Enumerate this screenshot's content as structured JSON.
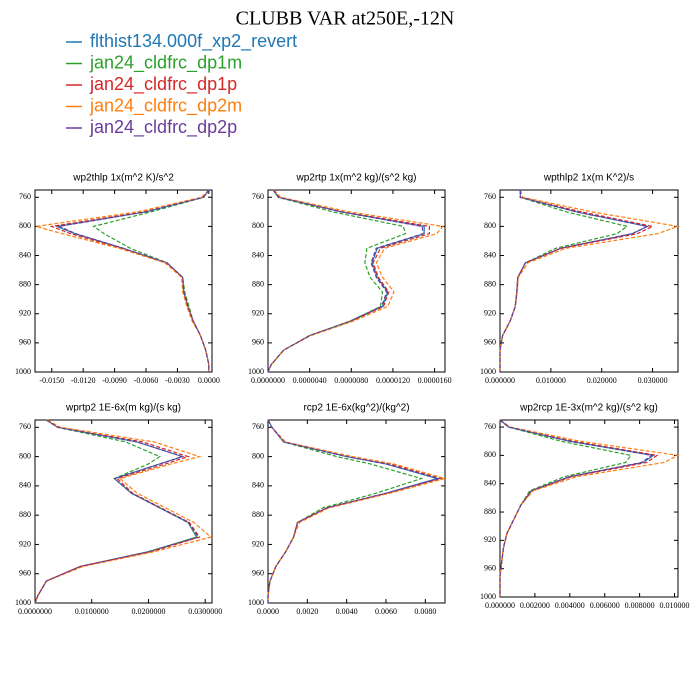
{
  "title": "CLUBB VAR at250E,-12N",
  "legend": [
    {
      "name": "flthist134.000f_xp2_revert",
      "color": "#1f77b4"
    },
    {
      "name": "jan24_cldfrc_dp1m",
      "color": "#2ca02c"
    },
    {
      "name": "jan24_cldfrc_dp1p",
      "color": "#d62728"
    },
    {
      "name": "jan24_cldfrc_dp2m",
      "color": "#ff7f0e"
    },
    {
      "name": "jan24_cldfrc_dp2p",
      "color": "#6a3d9a"
    }
  ],
  "chart_data": [
    {
      "type": "line",
      "title": "wp2thlp   1x(m^2 K)/s^2",
      "levels": [
        750,
        760,
        780,
        800,
        810,
        830,
        850,
        870,
        890,
        910,
        930,
        950,
        970,
        990,
        1000
      ],
      "xlim": [
        -0.0166,
        0.0003
      ],
      "xticks": [
        {
          "value": -0.015,
          "label": "-0.0150"
        },
        {
          "value": -0.012,
          "label": "-0.0120"
        },
        {
          "value": -0.009,
          "label": "-0.0090"
        },
        {
          "value": -0.006,
          "label": "-0.0060"
        },
        {
          "value": -0.003,
          "label": "-0.0030"
        },
        {
          "value": 0,
          "label": "0.0000"
        }
      ],
      "ylim": [
        750,
        1000
      ],
      "y_inverted": true,
      "yticks": [
        760,
        800,
        840,
        880,
        920,
        960,
        1000
      ],
      "series": [
        {
          "values": [
            0,
            -0.0005,
            -0.006,
            -0.0145,
            -0.0128,
            -0.0082,
            -0.004,
            -0.0025,
            -0.0024,
            -0.002,
            -0.0015,
            -0.0008,
            -0.0003,
            0,
            0
          ]
        },
        {
          "values": [
            0,
            -0.0005,
            -0.0055,
            -0.011,
            -0.01,
            -0.0075,
            -0.004,
            -0.0025,
            -0.0023,
            -0.0019,
            -0.0015,
            -0.0008,
            -0.0003,
            0,
            0
          ]
        },
        {
          "values": [
            0,
            -0.0006,
            -0.0062,
            -0.015,
            -0.0132,
            -0.0084,
            -0.0041,
            -0.0025,
            -0.0024,
            -0.002,
            -0.0015,
            -0.0008,
            -0.0003,
            0,
            0
          ]
        },
        {
          "values": [
            0,
            -0.0007,
            -0.0068,
            -0.0165,
            -0.014,
            -0.0086,
            -0.0042,
            -0.0026,
            -0.0025,
            -0.0021,
            -0.0016,
            -0.0008,
            -0.0003,
            0,
            0
          ]
        },
        {
          "values": [
            0,
            -0.0005,
            -0.006,
            -0.0143,
            -0.0127,
            -0.0082,
            -0.004,
            -0.0025,
            -0.0024,
            -0.002,
            -0.0015,
            -0.0008,
            -0.0003,
            0,
            0
          ]
        }
      ]
    },
    {
      "type": "line",
      "title": "wp2rtp   1x(m^2 kg)/(s^2 kg)",
      "levels": [
        750,
        760,
        780,
        800,
        810,
        830,
        850,
        870,
        890,
        910,
        930,
        950,
        970,
        990,
        1000
      ],
      "xlim": [
        0,
        1.7e-05
      ],
      "xticks": [
        {
          "value": 0,
          "label": "0.0000000"
        },
        {
          "value": 4e-06,
          "label": "0.0000040"
        },
        {
          "value": 8e-06,
          "label": "0.0000080"
        },
        {
          "value": 1.2e-05,
          "label": "0.0000120"
        },
        {
          "value": 1.6e-05,
          "label": "0.0000160"
        }
      ],
      "ylim": [
        750,
        1000
      ],
      "y_inverted": true,
      "yticks": [
        760,
        800,
        840,
        880,
        920,
        960,
        1000
      ],
      "series": [
        {
          "values": [
            5e-07,
            1e-06,
            7e-06,
            1.5e-05,
            1.5e-05,
            1.05e-05,
            1e-05,
            1.05e-05,
            1.15e-05,
            1.1e-05,
            8e-06,
            4e-06,
            1.5e-06,
            3e-07,
            0
          ]
        },
        {
          "values": [
            5e-07,
            1e-06,
            6.2e-06,
            1.3e-05,
            1.32e-05,
            9.5e-06,
            9.3e-06,
            9.8e-06,
            1.1e-05,
            1.08e-05,
            7.9e-06,
            4e-06,
            1.5e-06,
            3e-07,
            0
          ]
        },
        {
          "values": [
            5e-07,
            1.1e-06,
            7.2e-06,
            1.55e-05,
            1.55e-05,
            1.08e-05,
            1.01e-05,
            1.06e-05,
            1.16e-05,
            1.11e-05,
            8e-06,
            4e-06,
            1.5e-06,
            3e-07,
            0
          ]
        },
        {
          "values": [
            6e-07,
            1.2e-06,
            7.8e-06,
            1.68e-05,
            1.62e-05,
            1.12e-05,
            1.04e-05,
            1.1e-05,
            1.21e-05,
            1.15e-05,
            8.2e-06,
            4.1e-06,
            1.5e-06,
            3e-07,
            0
          ]
        },
        {
          "values": [
            5e-07,
            1e-06,
            7e-06,
            1.48e-05,
            1.49e-05,
            1.04e-05,
            9.9e-06,
            1.04e-05,
            1.14e-05,
            1.09e-05,
            7.9e-06,
            4e-06,
            1.5e-06,
            3e-07,
            0
          ]
        }
      ]
    },
    {
      "type": "line",
      "title": "wpthlp2   1x(m K^2)/s",
      "levels": [
        750,
        760,
        780,
        800,
        810,
        830,
        850,
        870,
        890,
        910,
        930,
        950,
        970,
        990,
        1000
      ],
      "xlim": [
        0,
        0.035
      ],
      "xticks": [
        {
          "value": 0,
          "label": "0.000000"
        },
        {
          "value": 0.01,
          "label": "0.010000"
        },
        {
          "value": 0.02,
          "label": "0.020000"
        },
        {
          "value": 0.03,
          "label": "0.030000"
        }
      ],
      "ylim": [
        750,
        1000
      ],
      "y_inverted": true,
      "yticks": [
        760,
        800,
        840,
        880,
        920,
        960,
        1000
      ],
      "series": [
        {
          "values": [
            0.004,
            0.004,
            0.015,
            0.029,
            0.026,
            0.012,
            0.005,
            0.0035,
            0.0033,
            0.003,
            0.002,
            0.0005,
            0,
            0,
            0
          ]
        },
        {
          "values": [
            0.004,
            0.004,
            0.013,
            0.025,
            0.023,
            0.011,
            0.005,
            0.0035,
            0.0033,
            0.003,
            0.002,
            0.0005,
            0,
            0,
            0
          ]
        },
        {
          "values": [
            0.004,
            0.004,
            0.016,
            0.03,
            0.027,
            0.012,
            0.005,
            0.0035,
            0.0033,
            0.003,
            0.002,
            0.0005,
            0,
            0,
            0
          ]
        },
        {
          "values": [
            0.004,
            0.0045,
            0.018,
            0.035,
            0.031,
            0.013,
            0.0055,
            0.0036,
            0.0034,
            0.003,
            0.002,
            0.0005,
            0,
            0,
            0
          ]
        },
        {
          "values": [
            0.004,
            0.004,
            0.015,
            0.029,
            0.026,
            0.012,
            0.005,
            0.0035,
            0.0033,
            0.003,
            0.002,
            0.0005,
            0,
            0,
            0
          ]
        }
      ]
    },
    {
      "type": "line",
      "title": "wprtp2   1E-6x(m kg)/(s kg)",
      "levels": [
        750,
        760,
        780,
        800,
        810,
        830,
        850,
        870,
        890,
        910,
        930,
        950,
        970,
        990,
        1000
      ],
      "xlim": [
        0,
        0.0312
      ],
      "xticks": [
        {
          "value": 0,
          "label": "0.0000000"
        },
        {
          "value": 0.01,
          "label": "0.0100000"
        },
        {
          "value": 0.02,
          "label": "0.0200000"
        },
        {
          "value": 0.03,
          "label": "0.0300000"
        }
      ],
      "ylim": [
        750,
        1000
      ],
      "y_inverted": true,
      "yticks": [
        760,
        800,
        840,
        880,
        920,
        960,
        1000
      ],
      "series": [
        {
          "values": [
            0.002,
            0.004,
            0.018,
            0.026,
            0.022,
            0.014,
            0.017,
            0.022,
            0.027,
            0.0285,
            0.02,
            0.008,
            0.002,
            0.0005,
            0
          ]
        },
        {
          "values": [
            0.002,
            0.004,
            0.016,
            0.022,
            0.02,
            0.014,
            0.017,
            0.022,
            0.027,
            0.0285,
            0.02,
            0.008,
            0.002,
            0.0005,
            0
          ]
        },
        {
          "values": [
            0.002,
            0.004,
            0.019,
            0.027,
            0.023,
            0.0145,
            0.0172,
            0.0222,
            0.0272,
            0.029,
            0.0205,
            0.008,
            0.002,
            0.0005,
            0
          ]
        },
        {
          "values": [
            0.0022,
            0.0045,
            0.021,
            0.029,
            0.024,
            0.015,
            0.018,
            0.023,
            0.028,
            0.031,
            0.021,
            0.0085,
            0.002,
            0.0005,
            0
          ]
        },
        {
          "values": [
            0.002,
            0.004,
            0.018,
            0.026,
            0.022,
            0.014,
            0.017,
            0.022,
            0.027,
            0.0288,
            0.02,
            0.008,
            0.002,
            0.0005,
            0
          ]
        }
      ]
    },
    {
      "type": "line",
      "title": "rcp2   1E-6x(kg^2)/(kg^2)",
      "levels": [
        750,
        760,
        780,
        800,
        810,
        830,
        850,
        870,
        890,
        910,
        930,
        950,
        970,
        990,
        1000
      ],
      "xlim": [
        0,
        0.009
      ],
      "xticks": [
        {
          "value": 0,
          "label": "0.0000"
        },
        {
          "value": 0.002,
          "label": "0.0020"
        },
        {
          "value": 0.004,
          "label": "0.0040"
        },
        {
          "value": 0.006,
          "label": "0.0060"
        },
        {
          "value": 0.008,
          "label": "0.0080"
        }
      ],
      "ylim": [
        750,
        1000
      ],
      "y_inverted": true,
      "yticks": [
        760,
        800,
        840,
        880,
        920,
        960,
        1000
      ],
      "series": [
        {
          "values": [
            0,
            0.0002,
            0.0008,
            0.004,
            0.006,
            0.0086,
            0.006,
            0.003,
            0.0015,
            0.0013,
            0.0009,
            0.0004,
            0.0001,
            0,
            0
          ]
        },
        {
          "values": [
            0,
            0.0002,
            0.0008,
            0.0035,
            0.0052,
            0.0078,
            0.0055,
            0.0028,
            0.0015,
            0.0013,
            0.0009,
            0.0004,
            0.0001,
            0,
            0
          ]
        },
        {
          "values": [
            0,
            0.0002,
            0.0008,
            0.0041,
            0.0062,
            0.0088,
            0.0061,
            0.003,
            0.0015,
            0.0013,
            0.0009,
            0.0004,
            0.0001,
            0,
            0
          ]
        },
        {
          "values": [
            0,
            0.0002,
            0.0009,
            0.0043,
            0.0064,
            0.009,
            0.0062,
            0.0031,
            0.0016,
            0.0013,
            0.0009,
            0.0004,
            0.0001,
            0,
            0
          ]
        },
        {
          "values": [
            0,
            0.0002,
            0.0008,
            0.004,
            0.006,
            0.0087,
            0.006,
            0.003,
            0.0015,
            0.0013,
            0.0009,
            0.0004,
            0.0001,
            0,
            0
          ]
        }
      ]
    },
    {
      "type": "line",
      "title": "wp2rcp   1E-3x(m^2 kg)/(s^2 kg)",
      "levels": [
        750,
        760,
        780,
        800,
        810,
        830,
        850,
        870,
        890,
        910,
        930,
        950,
        970,
        990,
        1000
      ],
      "xlim": [
        0,
        0.0102
      ],
      "xticks": [
        {
          "value": 0,
          "label": "0.000000"
        },
        {
          "value": 0.002,
          "label": "0.002000"
        },
        {
          "value": 0.004,
          "label": "0.004000"
        },
        {
          "value": 0.006,
          "label": "0.006000"
        },
        {
          "value": 0.008,
          "label": "0.008000"
        },
        {
          "value": 0.01,
          "label": "0.010000"
        }
      ],
      "ylim": [
        750,
        1000
      ],
      "y_inverted": true,
      "yticks": [
        760,
        800,
        840,
        880,
        920,
        960,
        1000
      ],
      "series": [
        {
          "values": [
            0,
            0.0005,
            0.004,
            0.0088,
            0.0082,
            0.004,
            0.0018,
            0.0012,
            0.0008,
            0.0004,
            0.0002,
            0.0001,
            0,
            0,
            0
          ]
        },
        {
          "values": [
            0,
            0.0005,
            0.0035,
            0.0075,
            0.0072,
            0.0037,
            0.0017,
            0.0012,
            0.0008,
            0.0004,
            0.0002,
            0.0001,
            0,
            0,
            0
          ]
        },
        {
          "values": [
            0,
            0.0005,
            0.0042,
            0.009,
            0.0084,
            0.0041,
            0.0018,
            0.0012,
            0.0008,
            0.0004,
            0.0002,
            0.0001,
            0,
            0,
            0
          ]
        },
        {
          "values": [
            0,
            0.0006,
            0.0046,
            0.0102,
            0.0094,
            0.0044,
            0.0019,
            0.0012,
            0.0008,
            0.0004,
            0.0002,
            0.0001,
            0,
            0,
            0
          ]
        },
        {
          "values": [
            0,
            0.0005,
            0.004,
            0.0087,
            0.0081,
            0.004,
            0.0018,
            0.0012,
            0.0008,
            0.0004,
            0.0002,
            0.0001,
            0,
            0,
            0
          ]
        }
      ]
    }
  ]
}
